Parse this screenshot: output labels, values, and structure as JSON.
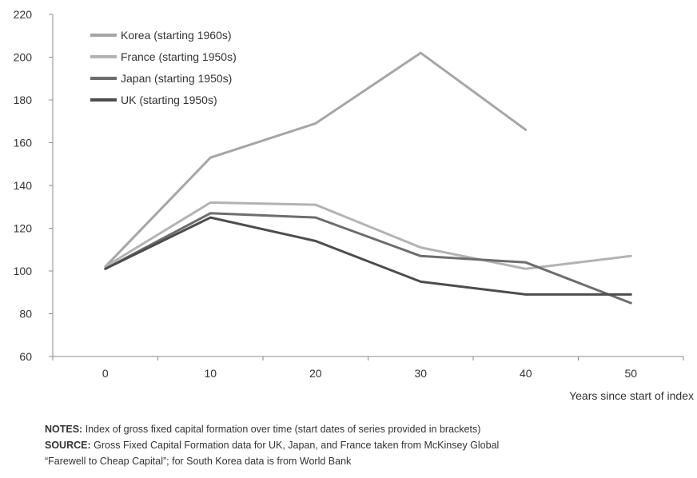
{
  "chart_data": {
    "type": "line",
    "title": "",
    "xlabel": "Years since start of index",
    "ylabel": "",
    "xlim": [
      -5,
      55
    ],
    "ylim": [
      60,
      220
    ],
    "x_ticks": [
      0,
      10,
      20,
      30,
      40,
      50
    ],
    "y_ticks": [
      60,
      80,
      100,
      120,
      140,
      160,
      180,
      200,
      220
    ],
    "grid": false,
    "legend_position": "top-left",
    "series": [
      {
        "name": "Korea (starting 1960s)",
        "color": "#a6a6a6",
        "x": [
          0,
          10,
          20,
          30,
          40
        ],
        "y": [
          102,
          153,
          169,
          202,
          166
        ]
      },
      {
        "name": "France (starting 1950s)",
        "color": "#b3b3b3",
        "x": [
          0,
          10,
          20,
          30,
          40,
          50
        ],
        "y": [
          102,
          132,
          131,
          111,
          101,
          107
        ]
      },
      {
        "name": "Japan (starting 1950s)",
        "color": "#6d6d6d",
        "x": [
          0,
          10,
          20,
          30,
          40,
          50
        ],
        "y": [
          101,
          127,
          125,
          107,
          104,
          85
        ]
      },
      {
        "name": "UK (starting 1950s)",
        "color": "#4d4d4d",
        "x": [
          0,
          10,
          20,
          30,
          40,
          50
        ],
        "y": [
          101,
          125,
          114,
          95,
          89,
          89
        ]
      }
    ]
  },
  "notes": {
    "notes_label": "NOTES:",
    "notes_text": " Index of gross fixed capital formation over time (start dates of series provided in brackets)",
    "source_label": "SOURCE:",
    "source_text": " Gross Fixed Capital Formation data for UK, Japan, and France taken from McKinsey Global",
    "source_text_2": "“Farewell to Cheap Capital”; for South Korea data is from World Bank"
  }
}
